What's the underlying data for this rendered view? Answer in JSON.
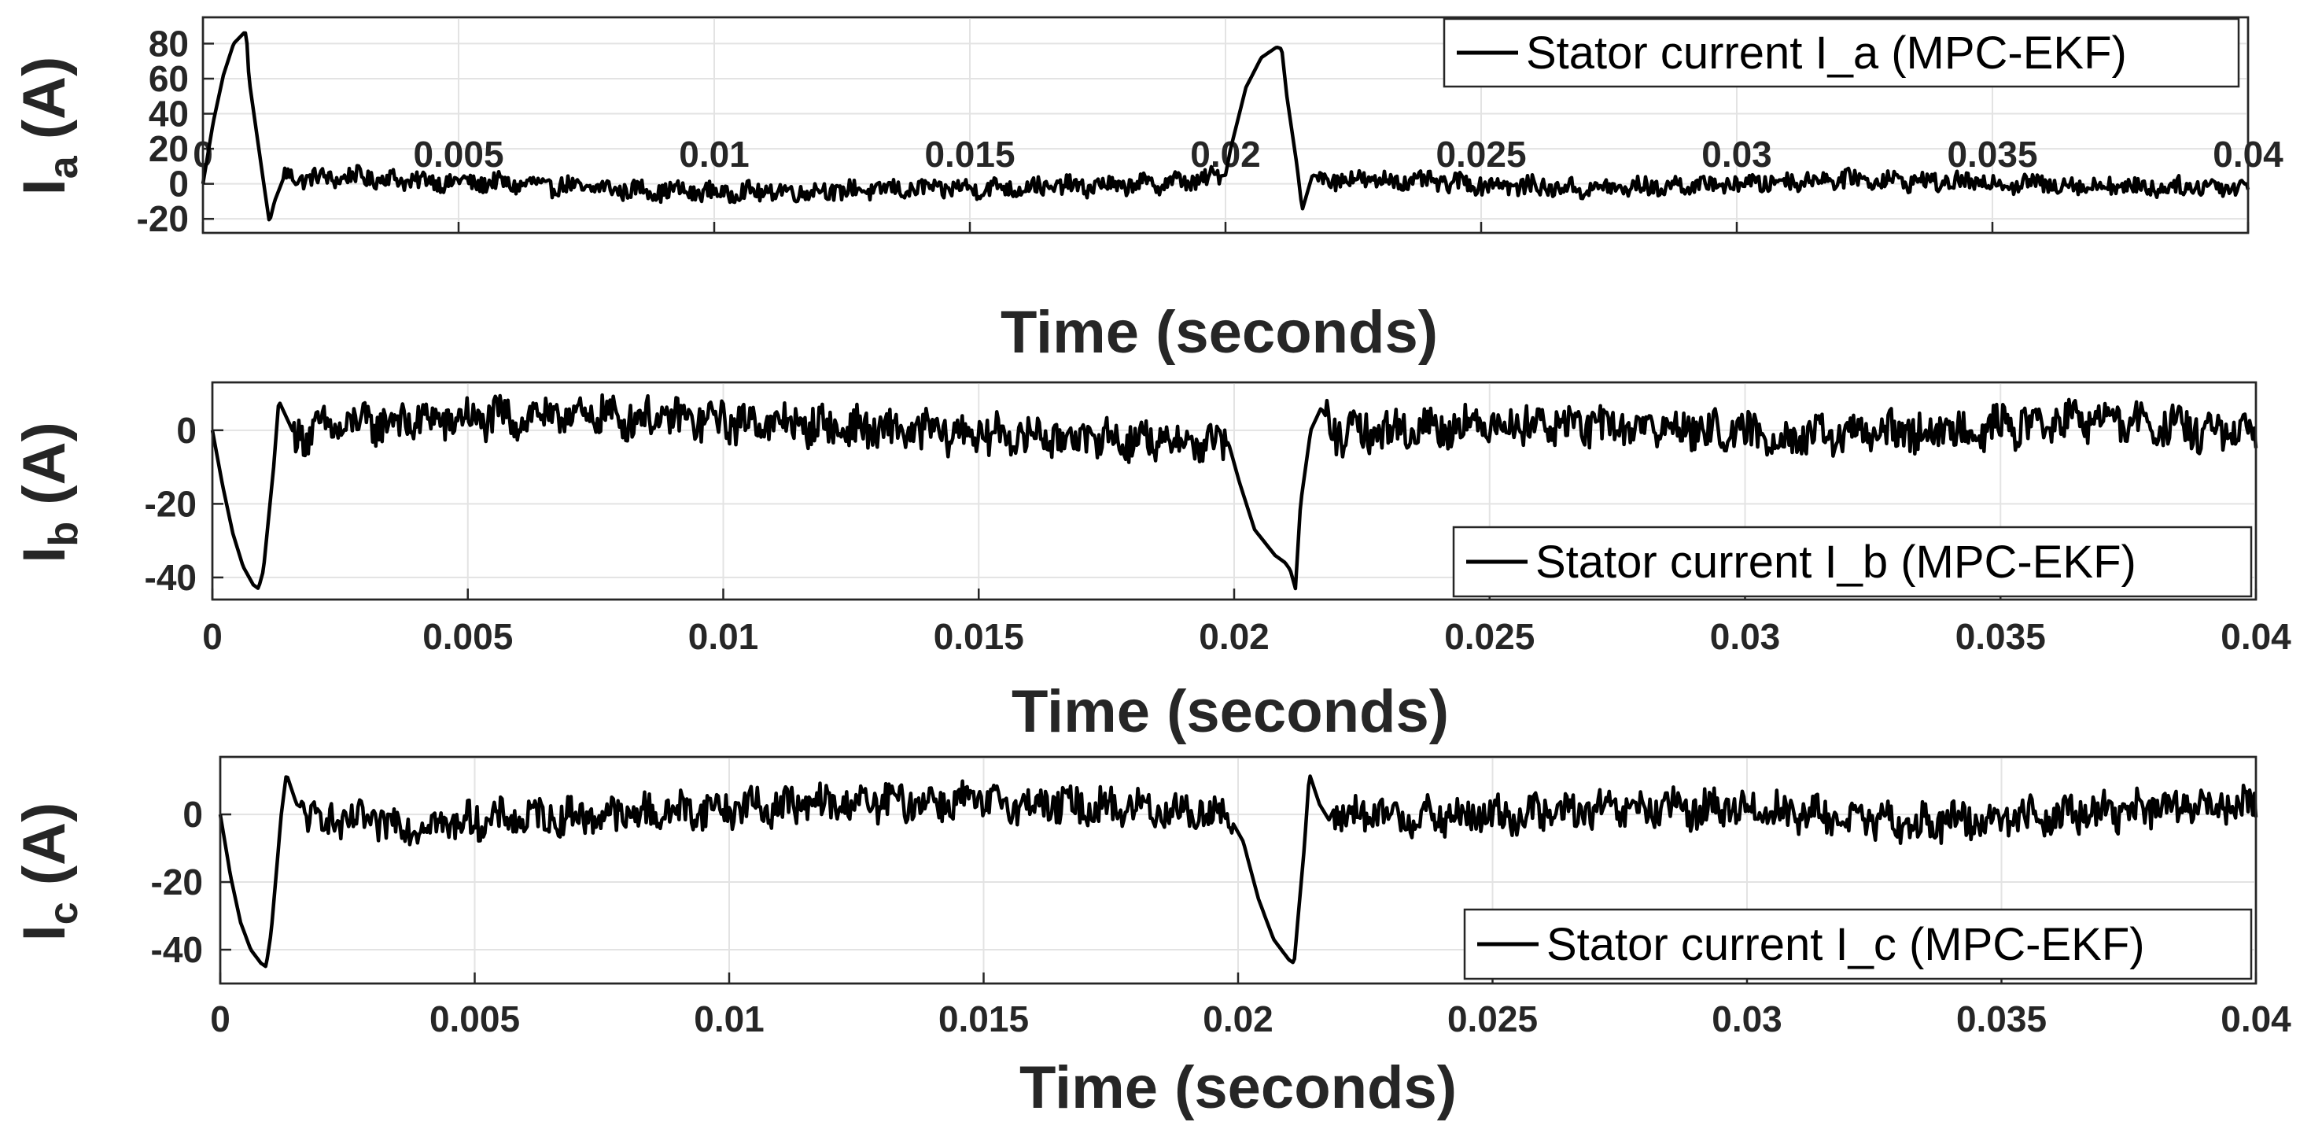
{
  "chart_data": [
    {
      "type": "line",
      "xlabel": "Time (seconds)",
      "ylabel": "I_a (A)",
      "ylabel_main": "I",
      "ylabel_sub": "a",
      "ylabel_unit": " (A)",
      "xlim": [
        0,
        0.04
      ],
      "ylim": [
        -28,
        95
      ],
      "x_ticks": [
        0,
        0.005,
        0.01,
        0.015,
        0.02,
        0.025,
        0.03,
        0.035,
        0.04
      ],
      "x_tick_labels": [
        "0",
        "0.005",
        "0.01",
        "0.015",
        "0.02",
        "0.025",
        "0.03",
        "0.035",
        "0.04"
      ],
      "y_ticks": [
        -20,
        0,
        20,
        40,
        60,
        80
      ],
      "y_tick_labels": [
        "-20",
        "0",
        "20",
        "40",
        "60",
        "80"
      ],
      "grid": true,
      "legend_position": "top-right",
      "series": [
        {
          "name": "Stator current I_a (MPC-EKF)",
          "color": "#000000",
          "x": [
            0,
            0.0002,
            0.0004,
            0.0006,
            0.0008,
            0.00085,
            0.0009,
            0.0012,
            0.0013,
            0.0014,
            0.0016,
            0.002,
            0.003,
            0.004,
            0.006,
            0.008,
            0.01,
            0.012,
            0.014,
            0.016,
            0.018,
            0.0195,
            0.02,
            0.0201,
            0.0204,
            0.0207,
            0.021,
            0.0211,
            0.0212,
            0.0214,
            0.0215,
            0.0217,
            0.022,
            0.023,
            0.025,
            0.027,
            0.03,
            0.032,
            0.034,
            0.036,
            0.038,
            0.04
          ],
          "y": [
            0,
            35,
            62,
            80,
            86,
            86,
            60,
            -2,
            -22,
            -10,
            5,
            3,
            4,
            2,
            0,
            -3,
            -5,
            -4,
            -3,
            -2,
            -1,
            2,
            5,
            20,
            55,
            72,
            78,
            77,
            50,
            10,
            -15,
            5,
            3,
            2,
            0,
            -3,
            0,
            3,
            1,
            0,
            -2,
            -1
          ],
          "noise": 5
        }
      ]
    },
    {
      "type": "line",
      "xlabel": "Time (seconds)",
      "ylabel": "I_b (A)",
      "ylabel_main": "I",
      "ylabel_sub": "b",
      "ylabel_unit": " (A)",
      "xlim": [
        0,
        0.04
      ],
      "ylim": [
        -46,
        13
      ],
      "x_ticks": [
        0,
        0.005,
        0.01,
        0.015,
        0.02,
        0.025,
        0.03,
        0.035,
        0.04
      ],
      "x_tick_labels": [
        "0",
        "0.005",
        "0.01",
        "0.015",
        "0.02",
        "0.025",
        "0.03",
        "0.035",
        "0.04"
      ],
      "y_ticks": [
        -40,
        -20,
        0
      ],
      "y_tick_labels": [
        "-40",
        "-20",
        "0"
      ],
      "grid": true,
      "legend_position": "bottom-right",
      "series": [
        {
          "name": "Stator current I_b (MPC-EKF)",
          "color": "#000000",
          "x": [
            0,
            0.0002,
            0.0004,
            0.0006,
            0.0008,
            0.0009,
            0.001,
            0.0012,
            0.0013,
            0.0016,
            0.003,
            0.005,
            0.007,
            0.009,
            0.011,
            0.013,
            0.015,
            0.017,
            0.019,
            0.0199,
            0.0201,
            0.0204,
            0.0208,
            0.021,
            0.0211,
            0.0212,
            0.0213,
            0.0215,
            0.0217,
            0.022,
            0.025,
            0.028,
            0.031,
            0.034,
            0.037,
            0.04
          ],
          "y": [
            0,
            -15,
            -28,
            -37,
            -42,
            -43,
            -38,
            -10,
            8,
            -1,
            2,
            3,
            4,
            3,
            2,
            0,
            -1,
            -2,
            -3,
            -4,
            -14,
            -27,
            -34,
            -36,
            -38,
            -43,
            -20,
            0,
            6,
            -1,
            2,
            1,
            -2,
            0,
            3,
            -2
          ],
          "noise": 5
        }
      ]
    },
    {
      "type": "line",
      "xlabel": "Time (seconds)",
      "ylabel": "I_c (A)",
      "ylabel_main": "I",
      "ylabel_sub": "c",
      "ylabel_unit": " (A)",
      "xlim": [
        0,
        0.04
      ],
      "ylim": [
        -50,
        17
      ],
      "x_ticks": [
        0,
        0.005,
        0.01,
        0.015,
        0.02,
        0.025,
        0.03,
        0.035,
        0.04
      ],
      "x_tick_labels": [
        "0",
        "0.005",
        "0.01",
        "0.015",
        "0.02",
        "0.025",
        "0.03",
        "0.035",
        "0.04"
      ],
      "y_ticks": [
        -40,
        -20,
        0
      ],
      "y_tick_labels": [
        "-40",
        "-20",
        "0"
      ],
      "grid": true,
      "legend_position": "bottom-right",
      "series": [
        {
          "name": "Stator current I_c (MPC-EKF)",
          "color": "#000000",
          "x": [
            0,
            0.0002,
            0.0004,
            0.0006,
            0.0008,
            0.0009,
            0.001,
            0.0012,
            0.0013,
            0.0015,
            0.002,
            0.004,
            0.006,
            0.008,
            0.01,
            0.012,
            0.014,
            0.016,
            0.018,
            0.0198,
            0.0201,
            0.0204,
            0.0207,
            0.021,
            0.0211,
            0.0213,
            0.0214,
            0.0216,
            0.0218,
            0.022,
            0.024,
            0.027,
            0.03,
            0.033,
            0.036,
            0.04
          ],
          "y": [
            0,
            -18,
            -32,
            -40,
            -44,
            -45,
            -35,
            0,
            12,
            3,
            -2,
            -3,
            -1,
            0,
            2,
            3,
            4,
            3,
            2,
            0,
            -8,
            -25,
            -37,
            -43,
            -44,
            -10,
            12,
            3,
            -2,
            0,
            -1,
            1,
            2,
            -3,
            0,
            3
          ],
          "noise": 5
        }
      ]
    }
  ]
}
